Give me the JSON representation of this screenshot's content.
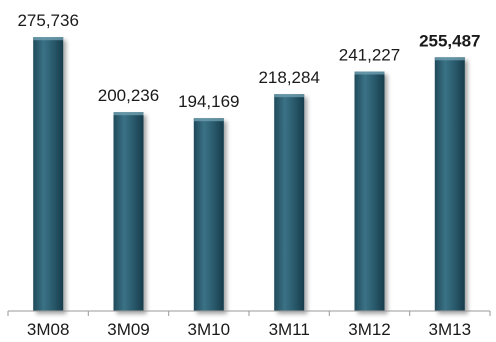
{
  "chart_data": {
    "type": "bar",
    "categories": [
      "3M08",
      "3M09",
      "3M10",
      "3M11",
      "3M12",
      "3M13"
    ],
    "values": [
      275736,
      200236,
      194169,
      218284,
      241227,
      255487
    ],
    "value_labels": [
      "275,736",
      "200,236",
      "194,169",
      "218,284",
      "241,227",
      "255,487"
    ],
    "highlighted_value_index": 5,
    "title": "",
    "xlabel": "",
    "ylabel": "",
    "ylim": [
      0,
      285000
    ],
    "grid": false,
    "legend": "none",
    "colors": {
      "bar_fill": "#2c5f72",
      "bar_highlight": "#5d8fa2",
      "bar_shadow": "#16394a",
      "axis": "#9a9a9a"
    }
  }
}
